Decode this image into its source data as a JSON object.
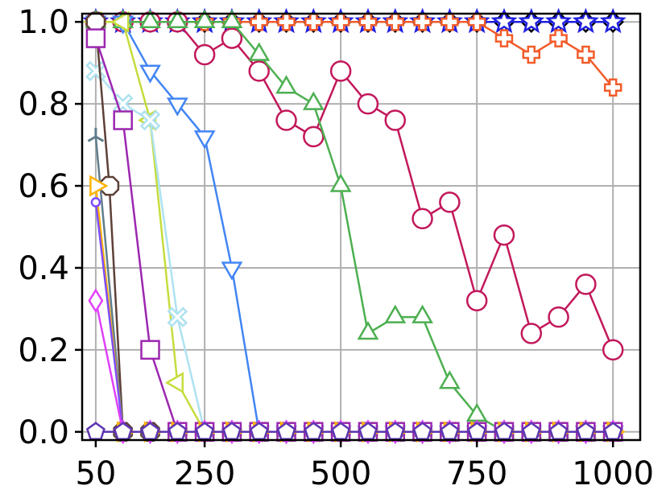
{
  "chart_data": {
    "type": "line",
    "title": "",
    "xlabel": "",
    "ylabel": "",
    "xlim": [
      25,
      1050
    ],
    "ylim": [
      -0.02,
      1.02
    ],
    "x_ticks": [
      50,
      250,
      500,
      750,
      1000
    ],
    "x_tick_labels": [
      "50",
      "250",
      "500",
      "750",
      "1000"
    ],
    "y_ticks": [
      0.0,
      0.2,
      0.4,
      0.6,
      0.8,
      1.0
    ],
    "y_tick_labels": [
      "0.0",
      "0.2",
      "0.4",
      "0.6",
      "0.8",
      "1.0"
    ],
    "grid": true,
    "legend": "none",
    "series": [
      {
        "color": "#000000",
        "marker": "diamond",
        "x": [
          50,
          100,
          150,
          200,
          250,
          300,
          350,
          400,
          450,
          500,
          550,
          600,
          650,
          700,
          750,
          800,
          850,
          900,
          950,
          1000
        ],
        "y": [
          1,
          1,
          1,
          1,
          1,
          1,
          1,
          1,
          1,
          1,
          1,
          1,
          1,
          1,
          1,
          1,
          1,
          1,
          1,
          1
        ]
      },
      {
        "color": "#1f1fe0",
        "marker": "star",
        "x": [
          50,
          100,
          150,
          200,
          250,
          300,
          350,
          400,
          450,
          500,
          550,
          600,
          650,
          700,
          750,
          800,
          850,
          900,
          950,
          1000
        ],
        "y": [
          1,
          1,
          1,
          1,
          1,
          1,
          1,
          1,
          1,
          1,
          1,
          1,
          1,
          1,
          1,
          1,
          1,
          1,
          1,
          1
        ]
      },
      {
        "color": "#f25c2a",
        "marker": "plus",
        "x": [
          50,
          100,
          150,
          200,
          250,
          300,
          350,
          400,
          450,
          500,
          550,
          600,
          650,
          700,
          750,
          800,
          850,
          900,
          950,
          1000
        ],
        "y": [
          1,
          1,
          1,
          1,
          1,
          1,
          1,
          1,
          1,
          1,
          1,
          1,
          1,
          1,
          1,
          0.96,
          0.92,
          0.96,
          0.92,
          0.84
        ]
      },
      {
        "color": "#c2185b",
        "marker": "circle",
        "x": [
          50,
          100,
          150,
          200,
          250,
          300,
          350,
          400,
          450,
          500,
          550,
          600,
          650,
          700,
          750,
          800,
          850,
          900,
          950,
          1000
        ],
        "y": [
          1,
          1,
          1,
          1,
          0.92,
          0.96,
          0.88,
          0.76,
          0.72,
          0.88,
          0.8,
          0.76,
          0.52,
          0.56,
          0.32,
          0.48,
          0.24,
          0.28,
          0.36,
          0.2
        ]
      },
      {
        "color": "#4caf50",
        "marker": "triangle-up",
        "x": [
          50,
          100,
          150,
          200,
          250,
          300,
          350,
          400,
          450,
          500,
          550,
          600,
          650,
          700,
          750,
          800,
          850,
          900,
          950,
          1000
        ],
        "y": [
          1,
          1,
          1,
          1,
          1,
          1,
          0.92,
          0.84,
          0.8,
          0.6,
          0.24,
          0.28,
          0.28,
          0.12,
          0.04,
          0,
          0,
          0,
          0,
          0
        ]
      },
      {
        "color": "#4285f4",
        "marker": "triangle-down",
        "x": [
          50,
          100,
          150,
          200,
          250,
          300,
          350,
          400,
          450,
          500,
          550,
          600,
          650,
          700,
          750,
          800,
          850,
          900,
          950,
          1000
        ],
        "y": [
          1,
          1,
          0.88,
          0.8,
          0.72,
          0.4,
          0,
          0,
          0,
          0,
          0,
          0,
          0,
          0,
          0,
          0,
          0,
          0,
          0,
          0
        ]
      },
      {
        "color": "#c6dc3c",
        "marker": "triangle-left",
        "x": [
          50,
          100,
          150,
          200,
          250,
          300,
          350,
          400,
          450,
          500,
          550,
          600,
          650,
          700,
          750,
          800,
          850,
          900,
          950,
          1000
        ],
        "y": [
          1,
          1,
          0.76,
          0.12,
          0,
          0,
          0,
          0,
          0,
          0,
          0,
          0,
          0,
          0,
          0,
          0,
          0,
          0,
          0,
          0
        ]
      },
      {
        "color": "#aee2f0",
        "marker": "x",
        "x": [
          50,
          100,
          150,
          200,
          250,
          300,
          350,
          400,
          450,
          500,
          550,
          600,
          650,
          700,
          750,
          800,
          850,
          900,
          950,
          1000
        ],
        "y": [
          0.88,
          0.8,
          0.76,
          0.28,
          0,
          0,
          0,
          0,
          0,
          0,
          0,
          0,
          0,
          0,
          0,
          0,
          0,
          0,
          0,
          0
        ]
      },
      {
        "color": "#5d4037",
        "marker": "octagon",
        "x": [
          50,
          75,
          100,
          150,
          200,
          250,
          300,
          350,
          400,
          450,
          500,
          550,
          600,
          650,
          700,
          750,
          800,
          850,
          900,
          950,
          1000
        ],
        "y": [
          1,
          0.6,
          0,
          0,
          0,
          0,
          0,
          0,
          0,
          0,
          0,
          0,
          0,
          0,
          0,
          0,
          0,
          0,
          0,
          0,
          0
        ]
      },
      {
        "color": "#9c27b0",
        "marker": "square",
        "x": [
          50,
          100,
          150,
          200,
          250,
          300,
          350,
          400,
          450,
          500,
          550,
          600,
          650,
          700,
          750,
          800,
          850,
          900,
          950,
          1000
        ],
        "y": [
          0.96,
          0.76,
          0.2,
          0,
          0,
          0,
          0,
          0,
          0,
          0,
          0,
          0,
          0,
          0,
          0,
          0,
          0,
          0,
          0,
          0
        ]
      },
      {
        "color": "#607d8b",
        "marker": "tri",
        "x": [
          50,
          100,
          150,
          200,
          250,
          300,
          350,
          400,
          450,
          500,
          550,
          600,
          650,
          700,
          750,
          800,
          850,
          900,
          950,
          1000
        ],
        "y": [
          0.72,
          0,
          0,
          0,
          0,
          0,
          0,
          0,
          0,
          0,
          0,
          0,
          0,
          0,
          0,
          0,
          0,
          0,
          0,
          0
        ]
      },
      {
        "color": "#ffb300",
        "marker": "triangle-right",
        "x": [
          50,
          100,
          150,
          200,
          250,
          300,
          350,
          400,
          450,
          500,
          550,
          600,
          650,
          700,
          750,
          800,
          850,
          900,
          950,
          1000
        ],
        "y": [
          0.6,
          0,
          0,
          0,
          0,
          0,
          0,
          0,
          0,
          0,
          0,
          0,
          0,
          0,
          0,
          0,
          0,
          0,
          0,
          0
        ]
      },
      {
        "color": "#7c4dff",
        "marker": "small-circle",
        "x": [
          50,
          100,
          150,
          200,
          250,
          300,
          350,
          400,
          450,
          500,
          550,
          600,
          650,
          700,
          750,
          800,
          850,
          900,
          950,
          1000
        ],
        "y": [
          0.56,
          0,
          0,
          0,
          0,
          0,
          0,
          0,
          0,
          0,
          0,
          0,
          0,
          0,
          0,
          0,
          0,
          0,
          0,
          0
        ]
      },
      {
        "color": "#e040fb",
        "marker": "thin-diamond",
        "x": [
          50,
          100,
          150,
          200,
          250,
          300,
          350,
          400,
          450,
          500,
          550,
          600,
          650,
          700,
          750,
          800,
          850,
          900,
          950,
          1000
        ],
        "y": [
          0.32,
          0,
          0,
          0,
          0,
          0,
          0,
          0,
          0,
          0,
          0,
          0,
          0,
          0,
          0,
          0,
          0,
          0,
          0,
          0
        ]
      },
      {
        "color": "#5e35b1",
        "marker": "pentagon",
        "x": [
          50,
          100,
          150,
          200,
          250,
          300,
          350,
          400,
          450,
          500,
          550,
          600,
          650,
          700,
          750,
          800,
          850,
          900,
          950,
          1000
        ],
        "y": [
          0,
          0,
          0,
          0,
          0,
          0,
          0,
          0,
          0,
          0,
          0,
          0,
          0,
          0,
          0,
          0,
          0,
          0,
          0,
          0
        ]
      }
    ]
  }
}
